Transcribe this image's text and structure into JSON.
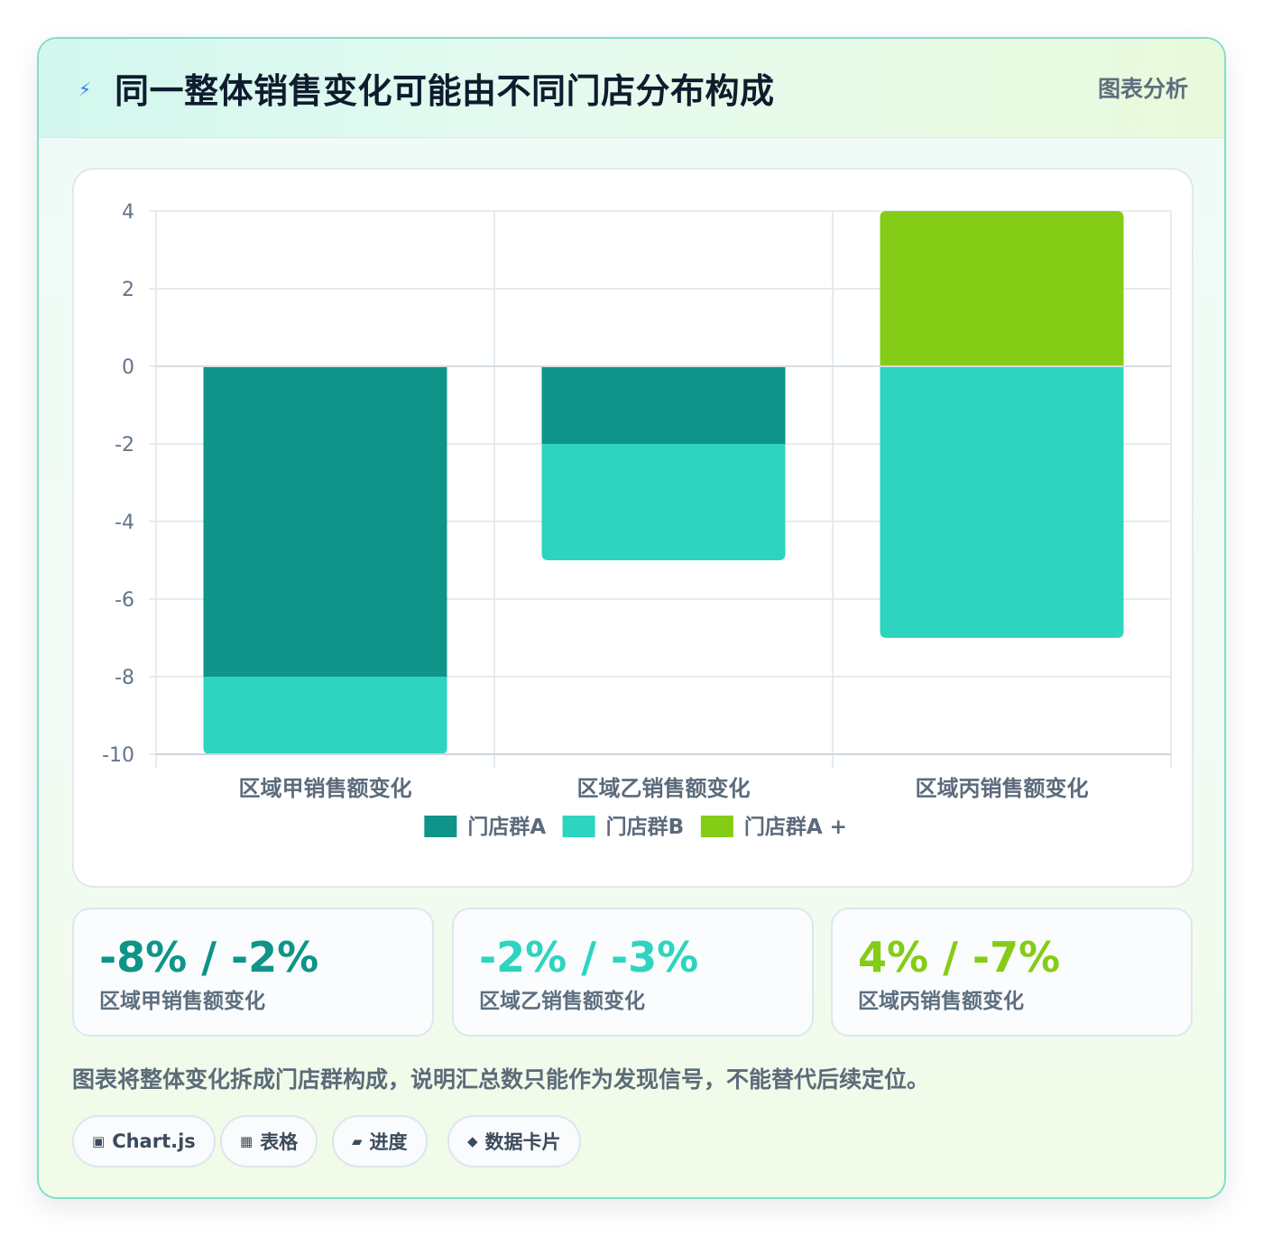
{
  "header": {
    "title": "同一整体销售变化可能由不同门店分布构成",
    "icon": "lightning-icon",
    "tag": "图表分析"
  },
  "chart_data": {
    "type": "bar",
    "stacked": true,
    "categories": [
      "区域甲销售额变化",
      "区域乙销售额变化",
      "区域丙销售额变化"
    ],
    "series": [
      {
        "name": "门店群A",
        "color": "#0e9488",
        "values": [
          -8,
          -2,
          0
        ]
      },
      {
        "name": "门店群B",
        "color": "#2dd4bf",
        "values": [
          -2,
          -3,
          -7
        ]
      },
      {
        "name": "门店群A +",
        "color": "#84cc16",
        "values": [
          0,
          0,
          4
        ]
      }
    ],
    "yticks": [
      "4",
      "2",
      "0",
      "-2",
      "-4",
      "-6",
      "-8",
      "-10"
    ],
    "ylim": [
      -10,
      4
    ],
    "grid": true,
    "legend_position": "bottom"
  },
  "stats": [
    {
      "value": "-8% / -2%",
      "label": "区域甲销售额变化",
      "color": "#0e9488"
    },
    {
      "value": "-2% / -3%",
      "label": "区域乙销售额变化",
      "color": "#2dd4bf"
    },
    {
      "value": "4% / -7%",
      "label": "区域丙销售额变化",
      "color": "#84cc16"
    }
  ],
  "note": "图表将整体变化拆成门店群构成，说明汇总数只能作为发现信号，不能替代后续定位。",
  "chips": [
    {
      "icon": "chart-icon",
      "glyph": "▣",
      "label": "Chart.js"
    },
    {
      "icon": "table-icon",
      "glyph": "▦",
      "label": "表格"
    },
    {
      "icon": "progress-icon",
      "glyph": "▰",
      "label": "进度"
    },
    {
      "icon": "data-card-icon",
      "glyph": "◆",
      "label": "数据卡片"
    }
  ]
}
